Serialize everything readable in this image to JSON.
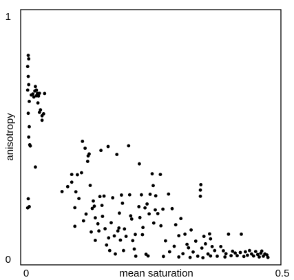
{
  "chart_data": {
    "type": "scatter",
    "xlabel": "mean saturation",
    "ylabel": "anisotropy",
    "xlim": [
      0,
      0.5
    ],
    "ylim": [
      0,
      1
    ],
    "x_ticks": [
      "0",
      "0.5"
    ],
    "y_ticks": [
      "0",
      "1"
    ],
    "grid": false,
    "legend": "none",
    "marker_color": "#000000",
    "points": [
      [
        0.004,
        0.832
      ],
      [
        0.005,
        0.818
      ],
      [
        0.003,
        0.787
      ],
      [
        0.004,
        0.747
      ],
      [
        0.005,
        0.714
      ],
      [
        0.003,
        0.692
      ],
      [
        0.006,
        0.646
      ],
      [
        0.004,
        0.598
      ],
      [
        0.006,
        0.544
      ],
      [
        0.005,
        0.502
      ],
      [
        0.007,
        0.471
      ],
      [
        0.008,
        0.466
      ],
      [
        0.004,
        0.253
      ],
      [
        0.006,
        0.221
      ],
      [
        0.003,
        0.216
      ],
      [
        0.01,
        0.672
      ],
      [
        0.013,
        0.676
      ],
      [
        0.015,
        0.664
      ],
      [
        0.017,
        0.688
      ],
      [
        0.018,
        0.706
      ],
      [
        0.02,
        0.692
      ],
      [
        0.02,
        0.669
      ],
      [
        0.022,
        0.679
      ],
      [
        0.024,
        0.668
      ],
      [
        0.026,
        0.679
      ],
      [
        0.023,
        0.64
      ],
      [
        0.026,
        0.602
      ],
      [
        0.028,
        0.612
      ],
      [
        0.031,
        0.57
      ],
      [
        0.031,
        0.588
      ],
      [
        0.034,
        0.596
      ],
      [
        0.036,
        0.678
      ],
      [
        0.018,
        0.381
      ],
      [
        0.07,
        0.282
      ],
      [
        0.081,
        0.302
      ],
      [
        0.089,
        0.351
      ],
      [
        0.089,
        0.32
      ],
      [
        0.095,
        0.217
      ],
      [
        0.095,
        0.142
      ],
      [
        0.097,
        0.281
      ],
      [
        0.1,
        0.35
      ],
      [
        0.103,
        0.254
      ],
      [
        0.108,
        0.358
      ],
      [
        0.11,
        0.485
      ],
      [
        0.112,
        0.164
      ],
      [
        0.115,
        0.457
      ],
      [
        0.117,
        0.191
      ],
      [
        0.12,
        0.404
      ],
      [
        0.121,
        0.426
      ],
      [
        0.123,
        0.434
      ],
      [
        0.125,
        0.307
      ],
      [
        0.127,
        0.119
      ],
      [
        0.129,
        0.214
      ],
      [
        0.131,
        0.244
      ],
      [
        0.133,
        0.223
      ],
      [
        0.135,
        0.176
      ],
      [
        0.135,
        0.085
      ],
      [
        0.14,
        0.152
      ],
      [
        0.142,
        0.123
      ],
      [
        0.144,
        0.262
      ],
      [
        0.146,
        0.448
      ],
      [
        0.148,
        0.226
      ],
      [
        0.149,
        0.182
      ],
      [
        0.152,
        0.264
      ],
      [
        0.154,
        0.132
      ],
      [
        0.157,
        0.066
      ],
      [
        0.16,
        0.464
      ],
      [
        0.161,
        0.095
      ],
      [
        0.163,
        0.044
      ],
      [
        0.166,
        0.156
      ],
      [
        0.169,
        0.257
      ],
      [
        0.172,
        0.103
      ],
      [
        0.174,
        0.03
      ],
      [
        0.177,
        0.432
      ],
      [
        0.179,
        0.123
      ],
      [
        0.181,
        0.135
      ],
      [
        0.182,
        0.195
      ],
      [
        0.184,
        0.086
      ],
      [
        0.186,
        0.268
      ],
      [
        0.188,
        0.235
      ],
      [
        0.19,
        0.044
      ],
      [
        0.192,
        0.131
      ],
      [
        0.195,
        0.101
      ],
      [
        0.2,
        0.467
      ],
      [
        0.202,
        0.269
      ],
      [
        0.204,
        0.184
      ],
      [
        0.206,
        0.171
      ],
      [
        0.208,
        0.084
      ],
      [
        0.211,
        0.05
      ],
      [
        0.213,
        0.109
      ],
      [
        0.22,
        0.221
      ],
      [
        0.221,
        0.394
      ],
      [
        0.222,
        0.177
      ],
      [
        0.225,
        0.269
      ],
      [
        0.227,
        0.108
      ],
      [
        0.228,
        0.137
      ],
      [
        0.232,
        0.216
      ],
      [
        0.234,
        0.029
      ],
      [
        0.236,
        0.232
      ],
      [
        0.24,
        0.192
      ],
      [
        0.242,
        0.271
      ],
      [
        0.246,
        0.354
      ],
      [
        0.248,
        0.306
      ],
      [
        0.249,
        0.155
      ],
      [
        0.252,
        0.208
      ],
      [
        0.253,
        0.265
      ],
      [
        0.257,
        0.193
      ],
      [
        0.262,
        0.351
      ],
      [
        0.263,
        0.144
      ],
      [
        0.267,
        0.211
      ],
      [
        0.272,
        0.083
      ],
      [
        0.278,
        0.272
      ],
      [
        0.28,
        0.039
      ],
      [
        0.285,
        0.213
      ],
      [
        0.289,
        0.061
      ],
      [
        0.292,
        0.148
      ],
      [
        0.298,
        0.104
      ],
      [
        0.302,
        0.173
      ],
      [
        0.306,
        0.031
      ],
      [
        0.31,
        0.11
      ],
      [
        0.314,
        0.069
      ],
      [
        0.317,
        0.055
      ],
      [
        0.322,
        0.127
      ],
      [
        0.326,
        0.038
      ],
      [
        0.331,
        0.082
      ],
      [
        0.335,
        0.021
      ],
      [
        0.34,
        0.263
      ],
      [
        0.34,
        0.288
      ],
      [
        0.341,
        0.31
      ],
      [
        0.343,
        0.054
      ],
      [
        0.347,
        0.101
      ],
      [
        0.35,
        0.071
      ],
      [
        0.355,
        0.03
      ],
      [
        0.358,
        0.111
      ],
      [
        0.36,
        0.091
      ],
      [
        0.363,
        0.06
      ],
      [
        0.368,
        0.044
      ],
      [
        0.373,
        0.021
      ],
      [
        0.38,
        0.06
      ],
      [
        0.385,
        0.043
      ],
      [
        0.39,
        0.031
      ],
      [
        0.395,
        0.11
      ],
      [
        0.4,
        0.023
      ],
      [
        0.403,
        0.041
      ],
      [
        0.408,
        0.034
      ],
      [
        0.412,
        0.023
      ],
      [
        0.418,
        0.036
      ],
      [
        0.42,
        0.11
      ],
      [
        0.425,
        0.02
      ],
      [
        0.428,
        0.039
      ],
      [
        0.432,
        0.025
      ],
      [
        0.436,
        0.044
      ],
      [
        0.44,
        0.03
      ],
      [
        0.444,
        0.022
      ],
      [
        0.448,
        0.04
      ],
      [
        0.452,
        0.028
      ],
      [
        0.455,
        0.018
      ],
      [
        0.458,
        0.033
      ],
      [
        0.46,
        0.042
      ],
      [
        0.463,
        0.021
      ],
      [
        0.466,
        0.03
      ],
      [
        0.47,
        0.026
      ],
      [
        0.472,
        0.016
      ],
      [
        0.36,
        0.022
      ],
      [
        0.388,
        0.018
      ],
      [
        0.345,
        0.015
      ],
      [
        0.32,
        0.016
      ],
      [
        0.298,
        0.018
      ],
      [
        0.268,
        0.02
      ],
      [
        0.238,
        0.022
      ],
      [
        0.214,
        0.021
      ]
    ]
  }
}
